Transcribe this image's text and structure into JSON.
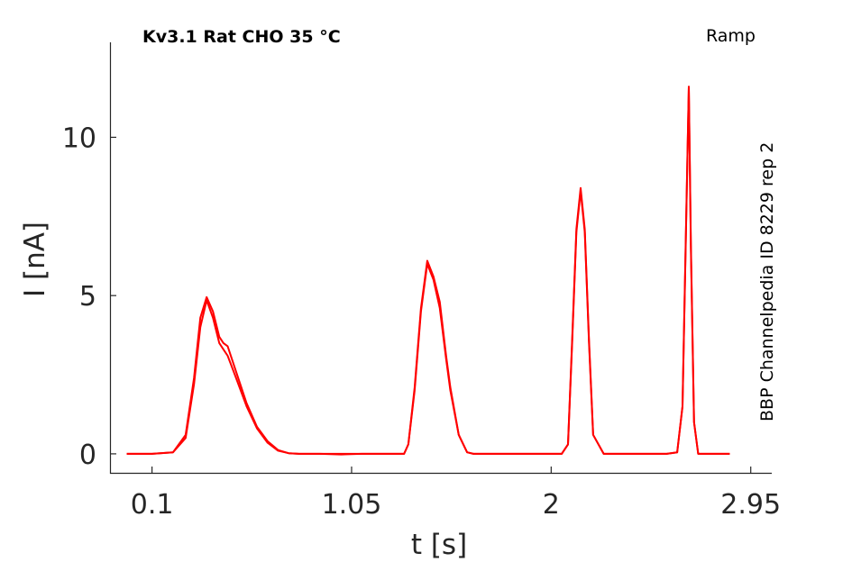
{
  "chart_data": {
    "type": "line",
    "title": "Kv3.1  Rat  CHO  35 °C",
    "protocol": "Ramp",
    "source": "BBP Channelpedia ID 8229 rep 2",
    "xlabel": "t [s]",
    "ylabel": "I [nA]",
    "xlim": [
      -0.1,
      3.05
    ],
    "ylim": [
      -0.6,
      13.0
    ],
    "xticks": [
      0.1,
      1.05,
      2,
      2.95
    ],
    "xtick_labels": [
      "0.1",
      "1.05",
      "2",
      "2.95"
    ],
    "yticks": [
      0,
      5,
      10
    ],
    "ytick_labels": [
      "0",
      "5",
      "10"
    ],
    "grid": false,
    "line_color": "#ff0000",
    "series": [
      {
        "x": [
          -0.02,
          0.1,
          0.2,
          0.26,
          0.3,
          0.33,
          0.36,
          0.39,
          0.42,
          0.44,
          0.46,
          0.5,
          0.55,
          0.6,
          0.65,
          0.7,
          0.75,
          0.8,
          0.9,
          1.0,
          1.1,
          1.2,
          1.3,
          1.32,
          1.35,
          1.38,
          1.41,
          1.44,
          1.47,
          1.5,
          1.52,
          1.56,
          1.6,
          1.63,
          1.65,
          1.7,
          1.8,
          1.9,
          2.0,
          2.05,
          2.08,
          2.1,
          2.12,
          2.14,
          2.16,
          2.18,
          2.2,
          2.25,
          2.4,
          2.55,
          2.6,
          2.625,
          2.64,
          2.655,
          2.665,
          2.68,
          2.7,
          2.75,
          2.85
        ],
        "y": [
          0.0,
          0.0,
          0.05,
          0.5,
          2.2,
          4.0,
          4.85,
          4.3,
          3.5,
          3.3,
          3.1,
          2.4,
          1.5,
          0.8,
          0.35,
          0.1,
          0.02,
          0.0,
          0.0,
          0.0,
          0.0,
          0.0,
          0.0,
          0.3,
          2.0,
          4.5,
          6.0,
          5.5,
          4.6,
          3.0,
          2.0,
          0.6,
          0.05,
          0.0,
          0.0,
          0.0,
          0.0,
          0.0,
          0.0,
          0.0,
          0.3,
          3.5,
          7.0,
          8.3,
          7.0,
          3.5,
          0.6,
          0.0,
          0.0,
          0.0,
          0.05,
          1.5,
          6.5,
          11.6,
          6.5,
          1.0,
          0.0,
          0.0,
          0.0
        ]
      },
      {
        "x": [
          -0.02,
          0.1,
          0.2,
          0.26,
          0.3,
          0.33,
          0.36,
          0.39,
          0.42,
          0.44,
          0.46,
          0.5,
          0.55,
          0.6,
          0.65,
          0.7,
          0.75,
          0.8,
          0.9,
          1.0,
          1.1,
          1.2,
          1.3,
          1.32,
          1.35,
          1.38,
          1.41,
          1.44,
          1.47,
          1.5,
          1.52,
          1.56,
          1.6,
          1.63,
          1.65,
          1.7,
          1.8,
          1.9,
          2.0,
          2.05,
          2.08,
          2.1,
          2.12,
          2.14,
          2.16,
          2.18,
          2.2,
          2.25,
          2.4,
          2.55,
          2.6,
          2.625,
          2.64,
          2.655,
          2.665,
          2.68,
          2.7,
          2.75,
          2.85
        ],
        "y": [
          0.0,
          0.0,
          0.05,
          0.6,
          2.4,
          4.3,
          4.95,
          4.5,
          3.7,
          3.5,
          3.4,
          2.6,
          1.6,
          0.85,
          0.4,
          0.12,
          0.02,
          0.0,
          0.0,
          -0.02,
          0.0,
          0.0,
          0.0,
          0.3,
          2.1,
          4.6,
          6.1,
          5.6,
          4.8,
          3.1,
          2.1,
          0.6,
          0.05,
          0.0,
          0.0,
          0.0,
          0.0,
          0.0,
          0.0,
          0.0,
          0.3,
          3.6,
          7.1,
          8.4,
          7.1,
          3.6,
          0.6,
          0.0,
          0.0,
          0.0,
          0.05,
          1.5,
          6.6,
          11.6,
          6.6,
          1.0,
          0.0,
          0.0,
          0.0
        ]
      }
    ]
  }
}
